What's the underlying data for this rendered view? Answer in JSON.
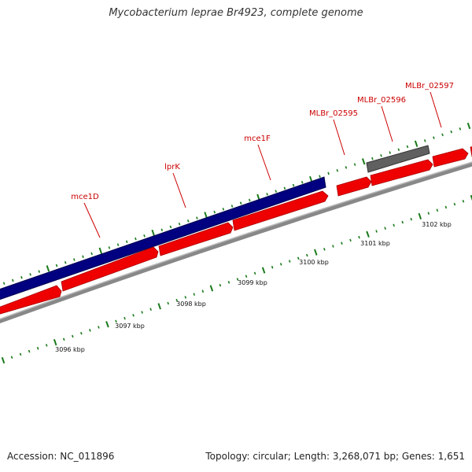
{
  "title": "Mycobacterium leprae Br4923, complete genome",
  "footer": {
    "accession": "Accession: NC_011896",
    "summary": "Topology: circular; Length: 3,268,071 bp; Genes: 1,651"
  },
  "colors": {
    "forward_cds": "#ee0000",
    "feature_blue": "#000080",
    "feature_gray": "#555555",
    "backbone": "#888888",
    "tick": "#1a7a1a",
    "label": "#cc0000"
  },
  "gene_labels": [
    "mce1D",
    "lprK",
    "mce1F",
    "MLBr_02595",
    "MLBr_02596",
    "MLBr_02597"
  ],
  "kbp_labels": [
    "3096 kbp",
    "3097 kbp",
    "3098 kbp",
    "3099 kbp",
    "3100 kbp",
    "3101 kbp",
    "3102 kbp"
  ]
}
